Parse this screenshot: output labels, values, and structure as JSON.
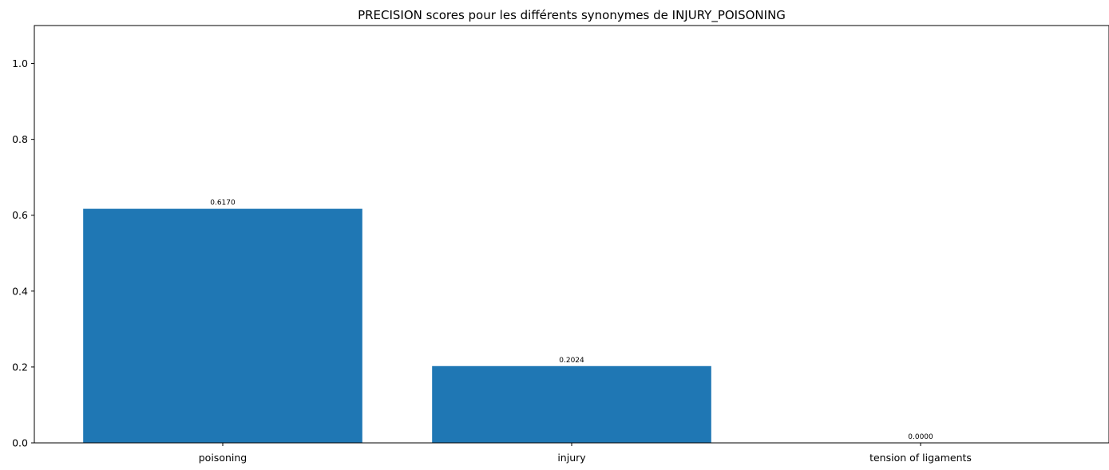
{
  "chart_data": {
    "type": "bar",
    "title": "PRECISION scores pour les différents synonymes de INJURY_POISONING",
    "xlabel": "",
    "ylabel": "",
    "categories": [
      "poisoning",
      "injury",
      "tension of ligaments"
    ],
    "values": [
      0.617,
      0.2024,
      0.0
    ],
    "data_labels": [
      "0.6170",
      "0.2024",
      "0.0000"
    ],
    "ylim": [
      0,
      1.1
    ],
    "yticks": [
      0.0,
      0.2,
      0.4,
      0.6,
      0.8,
      1.0
    ],
    "ytick_labels": [
      "0.0",
      "0.2",
      "0.4",
      "0.6",
      "0.8",
      "1.0"
    ],
    "grid": false,
    "legend": "none",
    "bar_color": "#1f77b4"
  }
}
